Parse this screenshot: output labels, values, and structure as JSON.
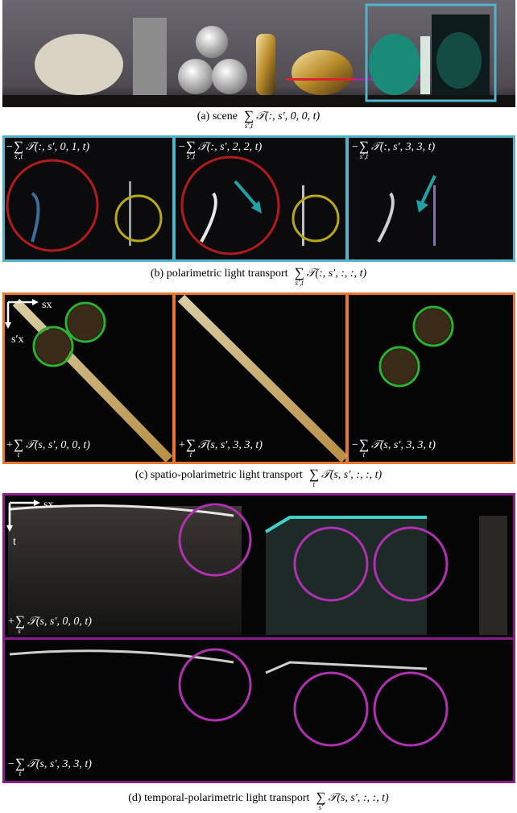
{
  "panels": [
    {
      "caption": {
        "label": "(a) scene",
        "formula": {
          "sum": "∑",
          "sub": "s′,t",
          "body": "𝒯(:, s′, 0, 0, t)"
        }
      },
      "labels": []
    },
    {
      "caption": {
        "label": "(b) polarimetric light transport",
        "formula": {
          "sum": "∑",
          "sub": "s′,t",
          "body": "𝒯(:, s′, :, :, t)"
        }
      },
      "labels": [
        {
          "sign": "−",
          "sum": "∑",
          "sub": "s′,t",
          "body": "𝒯(:, s′, 0, 1, t)"
        },
        {
          "sign": "−",
          "sum": "∑",
          "sub": "s′,t",
          "body": "𝒯(:, s′, 2, 2, t)"
        },
        {
          "sign": "−",
          "sum": "∑",
          "sub": "s′,t",
          "body": "𝒯(:, s′, 3, 3, t)"
        }
      ]
    },
    {
      "caption": {
        "label": "(c) spatio-polarimetric light transport",
        "formula": {
          "sum": "∑",
          "sub": "t",
          "body": "𝒯(s, s′, :, :, t)"
        }
      },
      "labels": [
        {
          "sign": "+",
          "sum": "∑",
          "sub": "t",
          "body": "𝒯(s, s′, 0, 0, t)"
        },
        {
          "sign": "+",
          "sum": "∑",
          "sub": "t",
          "body": "𝒯(s, s′, 3, 3, t)"
        },
        {
          "sign": "−",
          "sum": "∑",
          "sub": "t",
          "body": "𝒯(s, s′, 3, 3, t)"
        }
      ],
      "axes": {
        "x": "sx",
        "y": "s′x"
      }
    },
    {
      "caption": {
        "label": "(d) temporal-polarimetric light transport",
        "formula": {
          "sum": "∑",
          "sub": "s′",
          "body": "𝒯(s, s′, :, :, t)"
        }
      },
      "labels": [
        {
          "sign": "+",
          "sum": "∑",
          "sub": "s′",
          "body": "𝒯(s, s′, 0, 0, t)"
        },
        {
          "sign": "−",
          "sum": "∑",
          "sub": "t",
          "body": "𝒯(s, s′, 3, 3, t)"
        }
      ],
      "axes": {
        "x": "sx",
        "y": "t"
      }
    }
  ]
}
